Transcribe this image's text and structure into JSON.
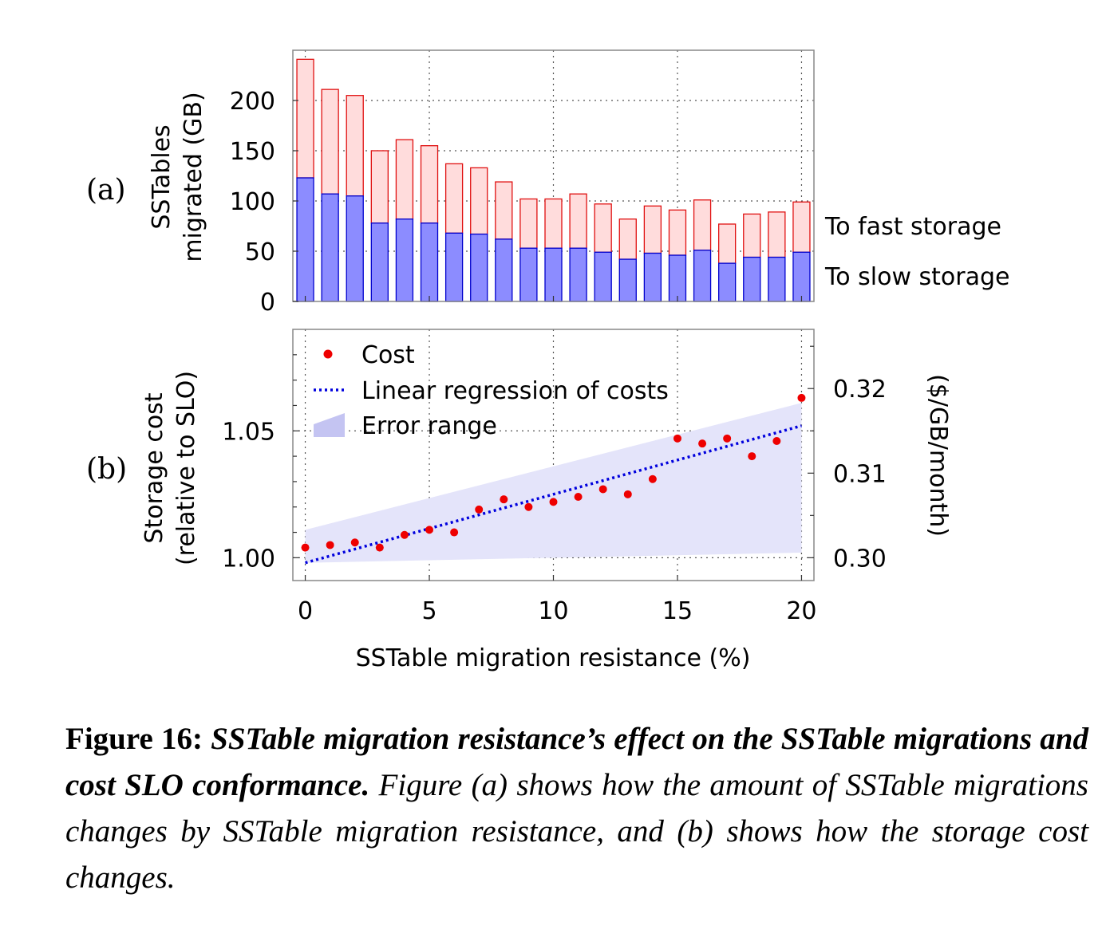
{
  "chart_data": [
    {
      "panel_label": "(a)",
      "type": "bar",
      "stacked": true,
      "ylabel_lines": [
        "SSTables",
        "migrated (GB)"
      ],
      "xlabel": "SSTable migration resistance (%)",
      "x": [
        0,
        1,
        2,
        3,
        4,
        5,
        6,
        7,
        8,
        9,
        10,
        11,
        12,
        13,
        14,
        15,
        16,
        17,
        18,
        19,
        20
      ],
      "xlim": [
        -0.5,
        20.5
      ],
      "xticks": [
        0,
        5,
        10,
        15,
        20
      ],
      "ylim": [
        0,
        250
      ],
      "yticks": [
        0,
        50,
        100,
        150,
        200
      ],
      "grid": true,
      "series": [
        {
          "name": "To slow storage",
          "color": "#8c8cff",
          "edge": "#0000cc",
          "values": [
            123,
            107,
            105,
            78,
            82,
            78,
            68,
            67,
            62,
            53,
            53,
            53,
            49,
            42,
            48,
            46,
            51,
            38,
            44,
            44,
            49
          ]
        },
        {
          "name": "To fast storage",
          "color": "#ffdcdc",
          "edge": "#e01010",
          "values": [
            118,
            104,
            100,
            72,
            79,
            77,
            69,
            66,
            57,
            49,
            49,
            54,
            48,
            40,
            47,
            45,
            50,
            39,
            43,
            45,
            50
          ]
        }
      ]
    },
    {
      "panel_label": "(b)",
      "type": "scatter",
      "ylabel_lines": [
        "Storage cost",
        "(relative to SLO)"
      ],
      "y2label": "($/GB/month)",
      "xlabel": "SSTable migration resistance (%)",
      "xlim": [
        -0.5,
        20.5
      ],
      "xticks": [
        0,
        5,
        10,
        15,
        20
      ],
      "ylim": [
        0.991,
        1.09
      ],
      "yticks": [
        1.0,
        1.05
      ],
      "yticklabels": [
        "1.00",
        "1.05"
      ],
      "y2ticks": [
        0.3,
        0.31,
        0.32
      ],
      "y2ticklabels": [
        "0.30",
        "0.31",
        "0.32"
      ],
      "y2_value_at_y1": [
        [
          1.0,
          0.3
        ],
        [
          1.05,
          0.315
        ]
      ],
      "grid": true,
      "legend_position": "top-left",
      "series": [
        {
          "name": "Cost",
          "style": "points",
          "color": "#ee0000",
          "x": [
            0,
            1,
            2,
            3,
            4,
            5,
            6,
            7,
            8,
            9,
            10,
            11,
            12,
            13,
            14,
            15,
            16,
            17,
            18,
            19,
            20
          ],
          "y": [
            1.004,
            1.005,
            1.006,
            1.004,
            1.009,
            1.011,
            1.01,
            1.019,
            1.023,
            1.02,
            1.022,
            1.024,
            1.027,
            1.025,
            1.031,
            1.047,
            1.045,
            1.047,
            1.04,
            1.046,
            1.063
          ]
        },
        {
          "name": "Linear regression of costs",
          "style": "dotted-line",
          "color": "#0000dd",
          "x": [
            0,
            20
          ],
          "y": [
            0.998,
            1.052
          ]
        },
        {
          "name": "Error range",
          "style": "band",
          "color": "#e4e4fa",
          "x": [
            0,
            20
          ],
          "upper": [
            1.011,
            1.061
          ],
          "lower": [
            0.998,
            1.002
          ]
        }
      ]
    }
  ],
  "caption": {
    "label": "Figure 16:",
    "title": "SSTable migration resistance’s effect on the SSTable migrations and cost SLO conformance.",
    "body": "Figure (a) shows how the amount of SSTable migrations changes by SSTable migration resistance, and (b) shows how the storage cost changes."
  }
}
